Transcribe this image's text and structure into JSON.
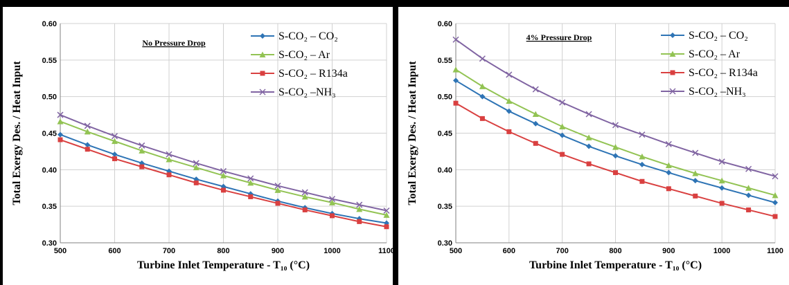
{
  "chart_data": [
    {
      "type": "line",
      "subtitle": "No Pressure Drop",
      "xlabel": "Turbine Inlet Temperature - T₁₀ (°C)",
      "ylabel": "Total Exergy Des.  / Heat Input",
      "x": [
        500,
        550,
        600,
        650,
        700,
        750,
        800,
        850,
        900,
        950,
        1000,
        1050,
        1100
      ],
      "xlim": [
        500,
        1100
      ],
      "ylim": [
        0.3,
        0.6
      ],
      "xticks": [
        "500",
        "600",
        "700",
        "800",
        "900",
        "1000",
        "1100"
      ],
      "yticks": [
        "0.30",
        "0.35",
        "0.40",
        "0.45",
        "0.50",
        "0.55",
        "0.60"
      ],
      "grid": true,
      "legend_position": "top-right",
      "series": [
        {
          "name": "S-CO₂ – CO₂",
          "color": "#2e74b5",
          "marker": "diamond",
          "values": [
            0.448,
            0.434,
            0.421,
            0.409,
            0.398,
            0.387,
            0.377,
            0.367,
            0.357,
            0.348,
            0.34,
            0.333,
            0.327
          ]
        },
        {
          "name": "S-CO₂ – Ar",
          "color": "#92c353",
          "marker": "triangle",
          "values": [
            0.466,
            0.452,
            0.439,
            0.426,
            0.414,
            0.403,
            0.392,
            0.382,
            0.372,
            0.363,
            0.355,
            0.346,
            0.338
          ]
        },
        {
          "name": "S-CO₂ – R134a",
          "color": "#d94040",
          "marker": "square",
          "values": [
            0.441,
            0.428,
            0.415,
            0.404,
            0.393,
            0.382,
            0.372,
            0.363,
            0.354,
            0.345,
            0.337,
            0.329,
            0.322
          ]
        },
        {
          "name": "S-CO₂ –NH₃",
          "color": "#8064a2",
          "marker": "x",
          "values": [
            0.475,
            0.46,
            0.446,
            0.433,
            0.421,
            0.409,
            0.398,
            0.388,
            0.378,
            0.369,
            0.36,
            0.352,
            0.344
          ]
        }
      ]
    },
    {
      "type": "line",
      "subtitle": "4% Pressure Drop",
      "xlabel": "Turbine Inlet Temperature  - T₁₀ (°C)",
      "ylabel": "Total Exergy Des.  / Heat Input",
      "x": [
        500,
        550,
        600,
        650,
        700,
        750,
        800,
        850,
        900,
        950,
        1000,
        1050,
        1100
      ],
      "xlim": [
        500,
        1100
      ],
      "ylim": [
        0.3,
        0.6
      ],
      "xticks": [
        "500",
        "600",
        "700",
        "800",
        "900",
        "1000",
        "1100"
      ],
      "yticks": [
        "0.30",
        "0.35",
        "0.40",
        "0.45",
        "0.50",
        "0.55",
        "0.60"
      ],
      "grid": true,
      "legend_position": "top-right",
      "series": [
        {
          "name": "S-CO₂ – CO₂",
          "color": "#2e74b5",
          "marker": "diamond",
          "values": [
            0.522,
            0.5,
            0.48,
            0.463,
            0.447,
            0.432,
            0.419,
            0.407,
            0.396,
            0.385,
            0.375,
            0.365,
            0.355
          ]
        },
        {
          "name": "S-CO₂ – Ar",
          "color": "#92c353",
          "marker": "triangle",
          "values": [
            0.537,
            0.514,
            0.494,
            0.476,
            0.459,
            0.444,
            0.431,
            0.418,
            0.406,
            0.395,
            0.385,
            0.375,
            0.365
          ]
        },
        {
          "name": "S-CO₂ – R134a",
          "color": "#d94040",
          "marker": "square",
          "values": [
            0.491,
            0.47,
            0.452,
            0.436,
            0.421,
            0.408,
            0.396,
            0.384,
            0.374,
            0.364,
            0.354,
            0.345,
            0.336
          ]
        },
        {
          "name": "S-CO₂ –NH₃",
          "color": "#8064a2",
          "marker": "x",
          "values": [
            0.578,
            0.552,
            0.53,
            0.51,
            0.492,
            0.476,
            0.461,
            0.448,
            0.435,
            0.423,
            0.411,
            0.401,
            0.391
          ]
        }
      ]
    }
  ]
}
